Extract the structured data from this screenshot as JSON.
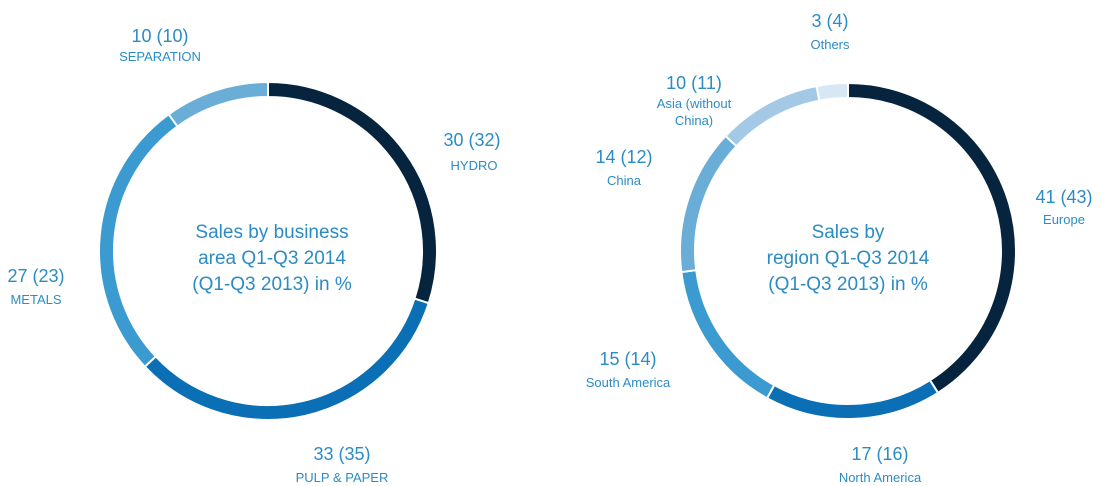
{
  "colors": {
    "label_text": "#2b8cc4",
    "palette": [
      "#06243d",
      "#0a6fb5",
      "#3b9ad0",
      "#6aaed8",
      "#a4c9e6",
      "#d8e7f4"
    ]
  },
  "chart_data": [
    {
      "type": "pie",
      "variant": "donut",
      "center_label": [
        "Sales by business",
        "area Q1-Q3 2014",
        "(Q1-Q3 2013) in %"
      ],
      "slices": [
        {
          "name": "HYDRO",
          "value": 30,
          "prior_value": 32,
          "display": "30 (32)",
          "color": "#06243d"
        },
        {
          "name": "PULP & PAPER",
          "value": 33,
          "prior_value": 35,
          "display": "33 (35)",
          "color": "#0a6fb5"
        },
        {
          "name": "METALS",
          "value": 27,
          "prior_value": 23,
          "display": "27 (23)",
          "color": "#3b9ad0"
        },
        {
          "name": "SEPARATION",
          "value": 10,
          "prior_value": 10,
          "display": "10 (10)",
          "color": "#6aaed8"
        }
      ]
    },
    {
      "type": "pie",
      "variant": "donut",
      "center_label": [
        "Sales by",
        "region Q1-Q3 2014",
        "(Q1-Q3 2013) in %"
      ],
      "slices": [
        {
          "name": "Europe",
          "value": 41,
          "prior_value": 43,
          "display": "41 (43)",
          "color": "#06243d"
        },
        {
          "name": "North America",
          "value": 17,
          "prior_value": 16,
          "display": "17 (16)",
          "color": "#0a6fb5"
        },
        {
          "name": "South America",
          "value": 15,
          "prior_value": 14,
          "display": "15 (14)",
          "color": "#3b9ad0"
        },
        {
          "name": "China",
          "value": 14,
          "prior_value": 12,
          "display": "14 (12)",
          "color": "#6aaed8"
        },
        {
          "name": "Asia (without China)",
          "value": 10,
          "prior_value": 11,
          "display": "10 (11)",
          "color": "#a4c9e6"
        },
        {
          "name": "Others",
          "value": 3,
          "prior_value": 4,
          "display": "3 (4)",
          "color": "#d8e7f4"
        }
      ]
    }
  ]
}
